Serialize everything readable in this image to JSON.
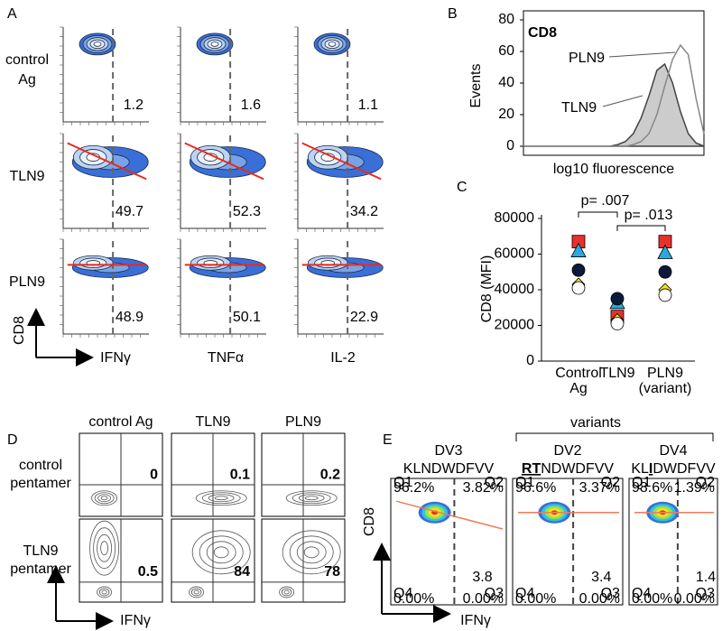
{
  "panel_a": {
    "label": "A",
    "row_labels": [
      [
        "control",
        "Ag"
      ],
      [
        "TLN9"
      ],
      [
        "PLN9"
      ]
    ],
    "column_labels": [
      "IFNγ",
      "TNFα",
      "IL-2"
    ],
    "y_axis": "CD8",
    "values": [
      [
        1.2,
        1.6,
        1.1
      ],
      [
        49.7,
        52.3,
        34.2
      ],
      [
        48.9,
        50.1,
        22.9
      ]
    ]
  },
  "chart_data": [
    {
      "type": "area",
      "panel_label": "B",
      "title": "CD8",
      "y_label": "Events",
      "x_label": "log10 fluorescence",
      "ylim": [
        0,
        80
      ],
      "yticks": [
        0,
        20,
        40,
        60,
        80
      ],
      "series": [
        {
          "name": "TLN9",
          "color": "#cccccc",
          "values": [
            0,
            0,
            0,
            0,
            0,
            0,
            0,
            0,
            0,
            0,
            0,
            0,
            1,
            3,
            8,
            18,
            32,
            48,
            52,
            40,
            22,
            8,
            2,
            0
          ]
        },
        {
          "name": "PLN9",
          "color": "#888888",
          "values": [
            0,
            0,
            0,
            0,
            0,
            0,
            0,
            0,
            0,
            0,
            0,
            0,
            0,
            0,
            1,
            3,
            8,
            20,
            38,
            55,
            64,
            58,
            30,
            8
          ]
        }
      ]
    },
    {
      "type": "scatter",
      "panel_label": "C",
      "y_label": "CD8 (MFI)",
      "categories": [
        [
          "Control",
          "Ag"
        ],
        [
          "TLN9"
        ],
        [
          "PLN9",
          "(variant)"
        ]
      ],
      "ylim": [
        0,
        80000
      ],
      "yticks": [
        0,
        20000,
        40000,
        60000,
        80000
      ],
      "annotations": [
        "p= .007",
        "p= .013"
      ],
      "series": [
        {
          "marker": "square",
          "color": "#e8312a",
          "values": [
            67000,
            25000,
            67000
          ]
        },
        {
          "marker": "triangle",
          "color": "#29a9e0",
          "values": [
            62000,
            33000,
            61000
          ]
        },
        {
          "marker": "circle",
          "color": "#0b1a3a",
          "values": [
            51000,
            35000,
            50000
          ]
        },
        {
          "marker": "diamond",
          "color": "#f5e11b",
          "values": [
            43000,
            23000,
            40000
          ]
        },
        {
          "marker": "circle",
          "color": "#ffffff",
          "values": [
            41000,
            21000,
            37000
          ]
        }
      ]
    }
  ],
  "panel_d": {
    "label": "D",
    "column_labels": [
      "control Ag",
      "TLN9",
      "PLN9"
    ],
    "row_labels": [
      [
        "control",
        "pentamer"
      ],
      [
        "TLN9",
        "pentamer"
      ]
    ],
    "values": [
      [
        0,
        0.1,
        0.2
      ],
      [
        0.5,
        84,
        78
      ]
    ],
    "x_axis": "IFNγ"
  },
  "panel_e": {
    "label": "E",
    "group_label": "variants",
    "y_axis": "CD8",
    "x_axis": "IFNγ",
    "plots": [
      {
        "name": "DV3",
        "sequence": [
          "KLNDWDFVV"
        ],
        "value": 3.8,
        "quadrants": [
          [
            "Q1",
            "96.2%"
          ],
          [
            "Q2",
            "3.82%"
          ],
          [
            "Q4",
            "0.00%"
          ],
          [
            "Q3",
            "0.00%"
          ]
        ]
      },
      {
        "name": "DV2",
        "sequence": [
          "RT",
          "NDWDFVV"
        ],
        "highlight": 0,
        "value": 3.4,
        "quadrants": [
          [
            "Q1",
            "96.6%"
          ],
          [
            "Q2",
            "3.37%"
          ],
          [
            "Q4",
            "0.00%"
          ],
          [
            "Q3",
            "0.00%"
          ]
        ]
      },
      {
        "name": "DV4",
        "sequence": [
          "KL",
          "I",
          "DWDFVV"
        ],
        "highlight": 1,
        "value": 1.4,
        "quadrants": [
          [
            "Q1",
            "98.6%"
          ],
          [
            "Q2",
            "1.39%"
          ],
          [
            "Q4",
            "0.00%"
          ],
          [
            "Q3",
            "0.00%"
          ]
        ]
      }
    ]
  }
}
